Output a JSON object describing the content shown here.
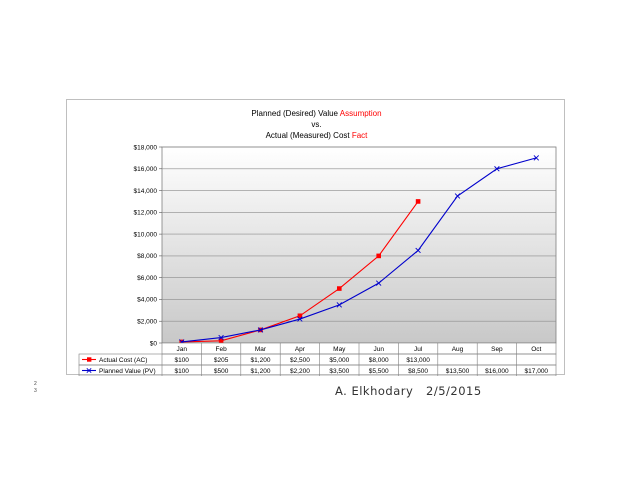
{
  "footer": {
    "author": "A. Elkhodary",
    "date": "2/5/2015",
    "slide_number_top": "2",
    "slide_number_bottom": "3"
  },
  "chart_data": {
    "type": "line",
    "title_parts": [
      [
        {
          "text": "Planned (Desired) Value ",
          "color": "#000000"
        },
        {
          "text": "Assumption",
          "color": "#ff0000"
        }
      ],
      [
        {
          "text": "vs.",
          "color": "#000000"
        }
      ],
      [
        {
          "text": "Actual (Measured) Cost ",
          "color": "#000000"
        },
        {
          "text": "Fact",
          "color": "#ff0000"
        }
      ]
    ],
    "categories": [
      "Jan",
      "Feb",
      "Mar",
      "Apr",
      "May",
      "Jun",
      "Jul",
      "Aug",
      "Sep",
      "Oct"
    ],
    "ylim": [
      0,
      18000
    ],
    "yticks": [
      0,
      2000,
      4000,
      6000,
      8000,
      10000,
      12000,
      14000,
      16000,
      18000
    ],
    "ytick_labels": [
      "$0",
      "$2,000",
      "$4,000",
      "$6,000",
      "$8,000",
      "$10,000",
      "$12,000",
      "$14,000",
      "$16,000",
      "$18,000"
    ],
    "grid": true,
    "legend": "data-table",
    "series": [
      {
        "name": "Actual Cost (AC)",
        "color": "#ff0000",
        "marker": "square",
        "values": [
          100,
          205,
          1200,
          2500,
          5000,
          8000,
          13000,
          null,
          null,
          null
        ],
        "labels": [
          "$100",
          "$205",
          "$1,200",
          "$2,500",
          "$5,000",
          "$8,000",
          "$13,000",
          "",
          "",
          ""
        ]
      },
      {
        "name": "Planned Value (PV)",
        "color": "#0000cc",
        "marker": "x",
        "values": [
          100,
          500,
          1200,
          2200,
          3500,
          5500,
          8500,
          13500,
          16000,
          17000
        ],
        "labels": [
          "$100",
          "$500",
          "$1,200",
          "$2,200",
          "$3,500",
          "$5,500",
          "$8,500",
          "$13,500",
          "$16,000",
          "$17,000"
        ]
      }
    ]
  }
}
